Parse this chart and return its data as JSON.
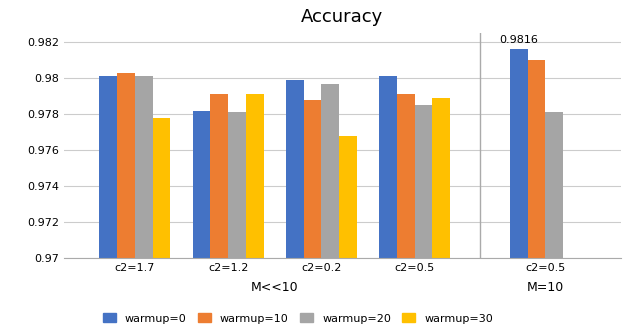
{
  "title": "Accuracy",
  "groups": [
    "c2=1.7",
    "c2=1.2",
    "c2=0.2",
    "c2=0.5",
    "c2=0.5"
  ],
  "series": {
    "warmup=0": [
      0.9801,
      0.9782,
      0.9799,
      0.9801,
      0.9816
    ],
    "warmup=10": [
      0.9803,
      0.9791,
      0.9788,
      0.9791,
      0.981
    ],
    "warmup=20": [
      0.9801,
      0.9781,
      0.9797,
      0.9785,
      0.9781
    ],
    "warmup=30": [
      0.9778,
      0.9791,
      0.9768,
      0.9789,
      null
    ]
  },
  "colors": {
    "warmup=0": "#4472C4",
    "warmup=10": "#ED7D31",
    "warmup=20": "#A5A5A5",
    "warmup=30": "#FFC000"
  },
  "ylim": [
    0.97,
    0.9825
  ],
  "ytick_values": [
    0.97,
    0.972,
    0.974,
    0.976,
    0.978,
    0.98,
    0.982
  ],
  "ytick_labels": [
    "0.97",
    "0.972",
    "0.974",
    "0.976",
    "0.978",
    "0.98",
    "0.982"
  ],
  "annotation": {
    "text": "0.9816",
    "group_idx": 4,
    "series_idx": 0
  },
  "xlabel_left": "M<<10",
  "xlabel_right": "M=10",
  "group_positions": [
    0.0,
    1.0,
    2.0,
    3.0,
    4.4
  ],
  "bar_width": 0.19,
  "title_fontsize": 13,
  "tick_fontsize": 8,
  "legend_fontsize": 8
}
